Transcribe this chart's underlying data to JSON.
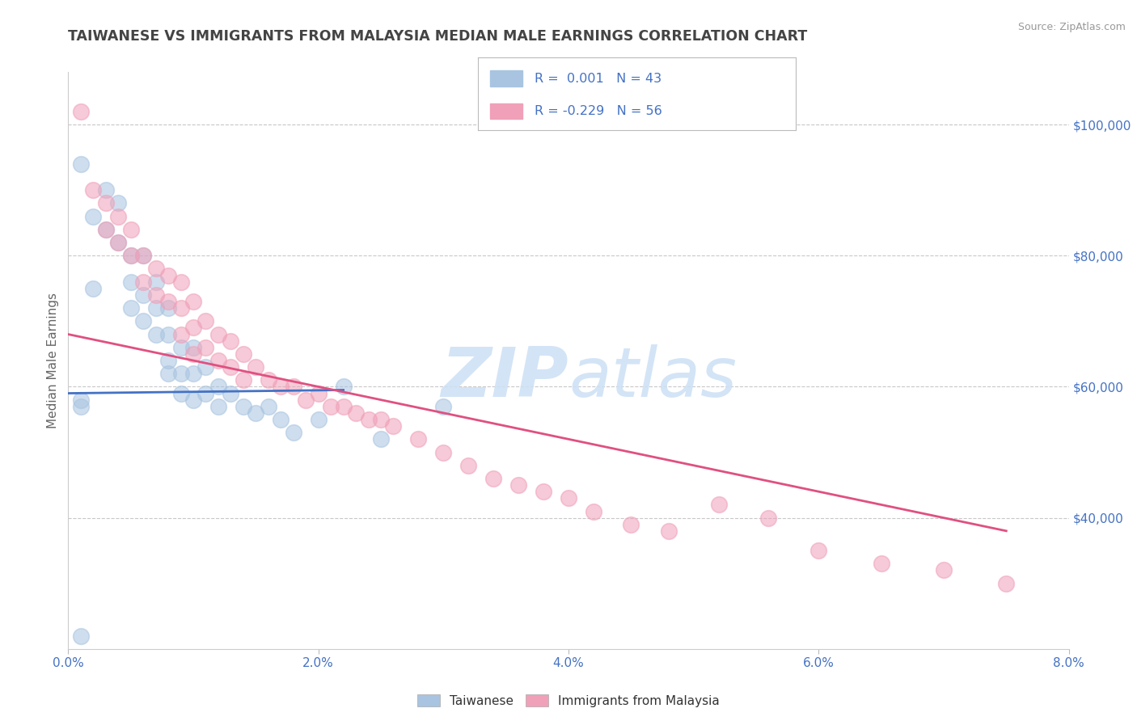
{
  "title": "TAIWANESE VS IMMIGRANTS FROM MALAYSIA MEDIAN MALE EARNINGS CORRELATION CHART",
  "source": "Source: ZipAtlas.com",
  "ylabel": "Median Male Earnings",
  "xlim": [
    0.0,
    0.08
  ],
  "ylim": [
    20000,
    108000
  ],
  "yticks": [
    40000,
    60000,
    80000,
    100000
  ],
  "ytick_labels": [
    "$40,000",
    "$60,000",
    "$80,000",
    "$100,000"
  ],
  "xticks": [
    0.0,
    0.02,
    0.04,
    0.06,
    0.08
  ],
  "xtick_labels": [
    "0.0%",
    "2.0%",
    "4.0%",
    "6.0%",
    "8.0%"
  ],
  "R_taiwanese": 0.001,
  "N_taiwanese": 43,
  "R_malaysia": -0.229,
  "N_malaysia": 56,
  "background_color": "#ffffff",
  "grid_color": "#c8c8c8",
  "title_color": "#444444",
  "axis_label_color": "#666666",
  "tick_label_color": "#4472c4",
  "scatter_taiwanese_color": "#a8c4e0",
  "scatter_malaysia_color": "#f0a0b8",
  "line_taiwanese_color": "#4472c4",
  "line_malaysia_color": "#e05080",
  "tw_line_x": [
    0.0,
    0.022
  ],
  "tw_line_y": [
    59000,
    59500
  ],
  "mal_line_x": [
    0.0,
    0.075
  ],
  "mal_line_y": [
    68000,
    38000
  ],
  "taiwanese_x": [
    0.001,
    0.001,
    0.001,
    0.002,
    0.002,
    0.003,
    0.003,
    0.004,
    0.004,
    0.005,
    0.005,
    0.005,
    0.006,
    0.006,
    0.006,
    0.007,
    0.007,
    0.007,
    0.008,
    0.008,
    0.008,
    0.008,
    0.009,
    0.009,
    0.009,
    0.01,
    0.01,
    0.01,
    0.011,
    0.011,
    0.012,
    0.012,
    0.013,
    0.014,
    0.015,
    0.016,
    0.017,
    0.018,
    0.02,
    0.022,
    0.025,
    0.03,
    0.001
  ],
  "taiwanese_y": [
    22000,
    57000,
    58000,
    86000,
    75000,
    90000,
    84000,
    88000,
    82000,
    80000,
    76000,
    72000,
    80000,
    74000,
    70000,
    76000,
    72000,
    68000,
    72000,
    68000,
    64000,
    62000,
    66000,
    62000,
    59000,
    66000,
    62000,
    58000,
    63000,
    59000,
    60000,
    57000,
    59000,
    57000,
    56000,
    57000,
    55000,
    53000,
    55000,
    60000,
    52000,
    57000,
    94000
  ],
  "malaysia_x": [
    0.001,
    0.002,
    0.003,
    0.003,
    0.004,
    0.004,
    0.005,
    0.005,
    0.006,
    0.006,
    0.007,
    0.007,
    0.008,
    0.008,
    0.009,
    0.009,
    0.009,
    0.01,
    0.01,
    0.01,
    0.011,
    0.011,
    0.012,
    0.012,
    0.013,
    0.013,
    0.014,
    0.014,
    0.015,
    0.016,
    0.017,
    0.018,
    0.019,
    0.02,
    0.021,
    0.022,
    0.023,
    0.024,
    0.025,
    0.026,
    0.028,
    0.03,
    0.032,
    0.034,
    0.036,
    0.038,
    0.04,
    0.042,
    0.045,
    0.048,
    0.052,
    0.056,
    0.06,
    0.065,
    0.07,
    0.075
  ],
  "malaysia_y": [
    102000,
    90000,
    88000,
    84000,
    86000,
    82000,
    84000,
    80000,
    80000,
    76000,
    78000,
    74000,
    77000,
    73000,
    76000,
    72000,
    68000,
    73000,
    69000,
    65000,
    70000,
    66000,
    68000,
    64000,
    67000,
    63000,
    65000,
    61000,
    63000,
    61000,
    60000,
    60000,
    58000,
    59000,
    57000,
    57000,
    56000,
    55000,
    55000,
    54000,
    52000,
    50000,
    48000,
    46000,
    45000,
    44000,
    43000,
    41000,
    39000,
    38000,
    42000,
    40000,
    35000,
    33000,
    32000,
    30000
  ]
}
